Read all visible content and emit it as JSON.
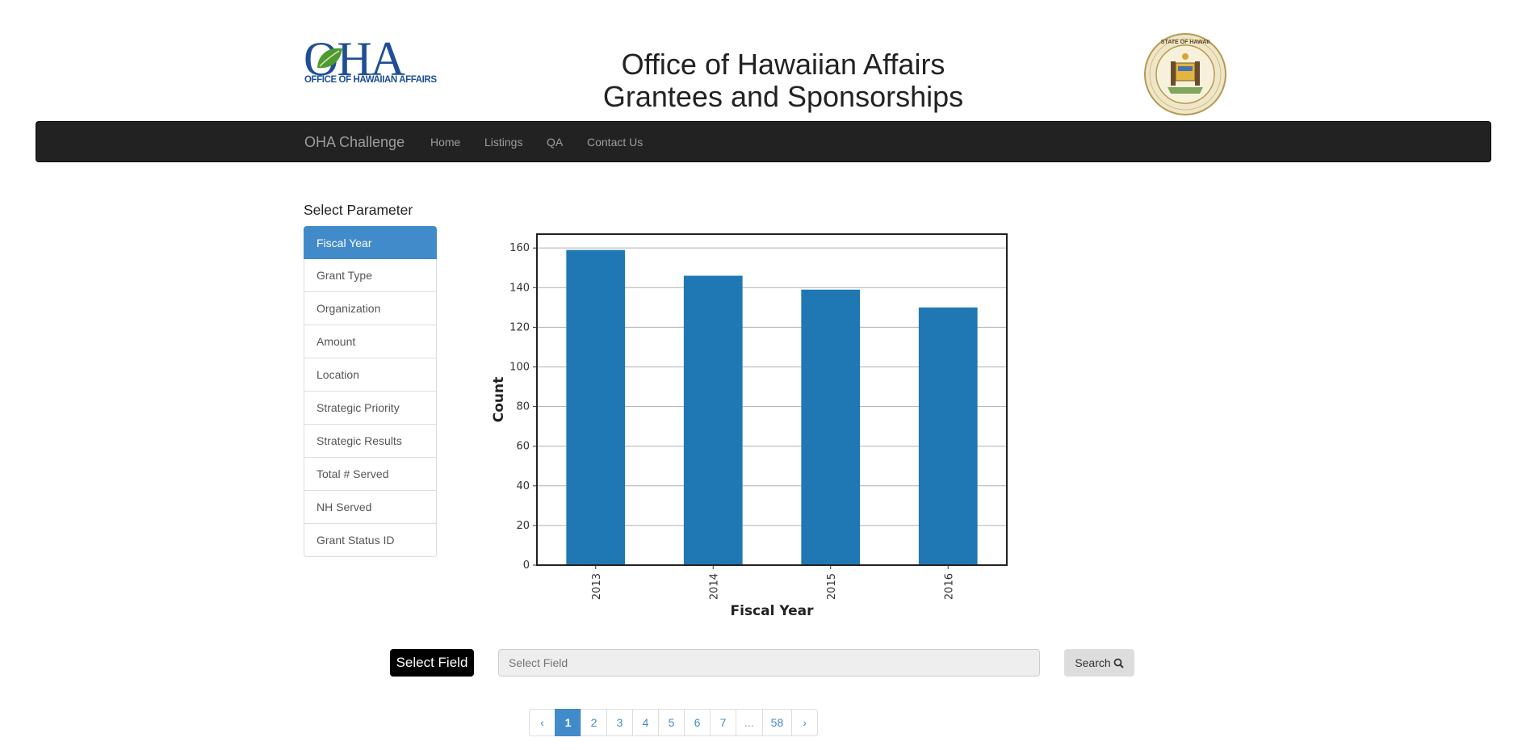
{
  "header": {
    "logo_letters": "OHA",
    "logo_subtitle": "OFFICE OF HAWAIIAN AFFAIRS",
    "title_line1": "Office of Hawaiian Affairs",
    "title_line2": "Grantees and Sponsorships",
    "seal_text": "STATE OF HAWAII"
  },
  "navbar": {
    "brand": "OHA Challenge",
    "links": [
      "Home",
      "Listings",
      "QA",
      "Contact Us"
    ]
  },
  "sidebar": {
    "title": "Select Parameter",
    "items": [
      "Fiscal Year",
      "Grant Type",
      "Organization",
      "Amount",
      "Location",
      "Strategic Priority",
      "Strategic Results",
      "Total # Served",
      "NH Served",
      "Grant Status ID"
    ],
    "active_index": 0
  },
  "chart_data": {
    "type": "bar",
    "categories": [
      "2013",
      "2014",
      "2015",
      "2016"
    ],
    "values": [
      159,
      146,
      139,
      130
    ],
    "xlabel": "Fiscal Year",
    "ylabel": "Count",
    "ylim": [
      0,
      167
    ],
    "yticks": [
      0,
      20,
      40,
      60,
      80,
      100,
      120,
      140,
      160
    ],
    "grid": "horizontal",
    "bar_color": "#1f77b4"
  },
  "search": {
    "select_field_label": "Select Field",
    "placeholder": "Select Field",
    "search_label": "Search"
  },
  "pagination": {
    "prev": "‹",
    "pages": [
      "1",
      "2",
      "3",
      "4",
      "5",
      "6",
      "7",
      "...",
      "58"
    ],
    "next": "›",
    "active": "1"
  },
  "colors": {
    "navbar_bg": "#222222",
    "accent": "#428bca",
    "logo_blue": "#1f4e96"
  }
}
